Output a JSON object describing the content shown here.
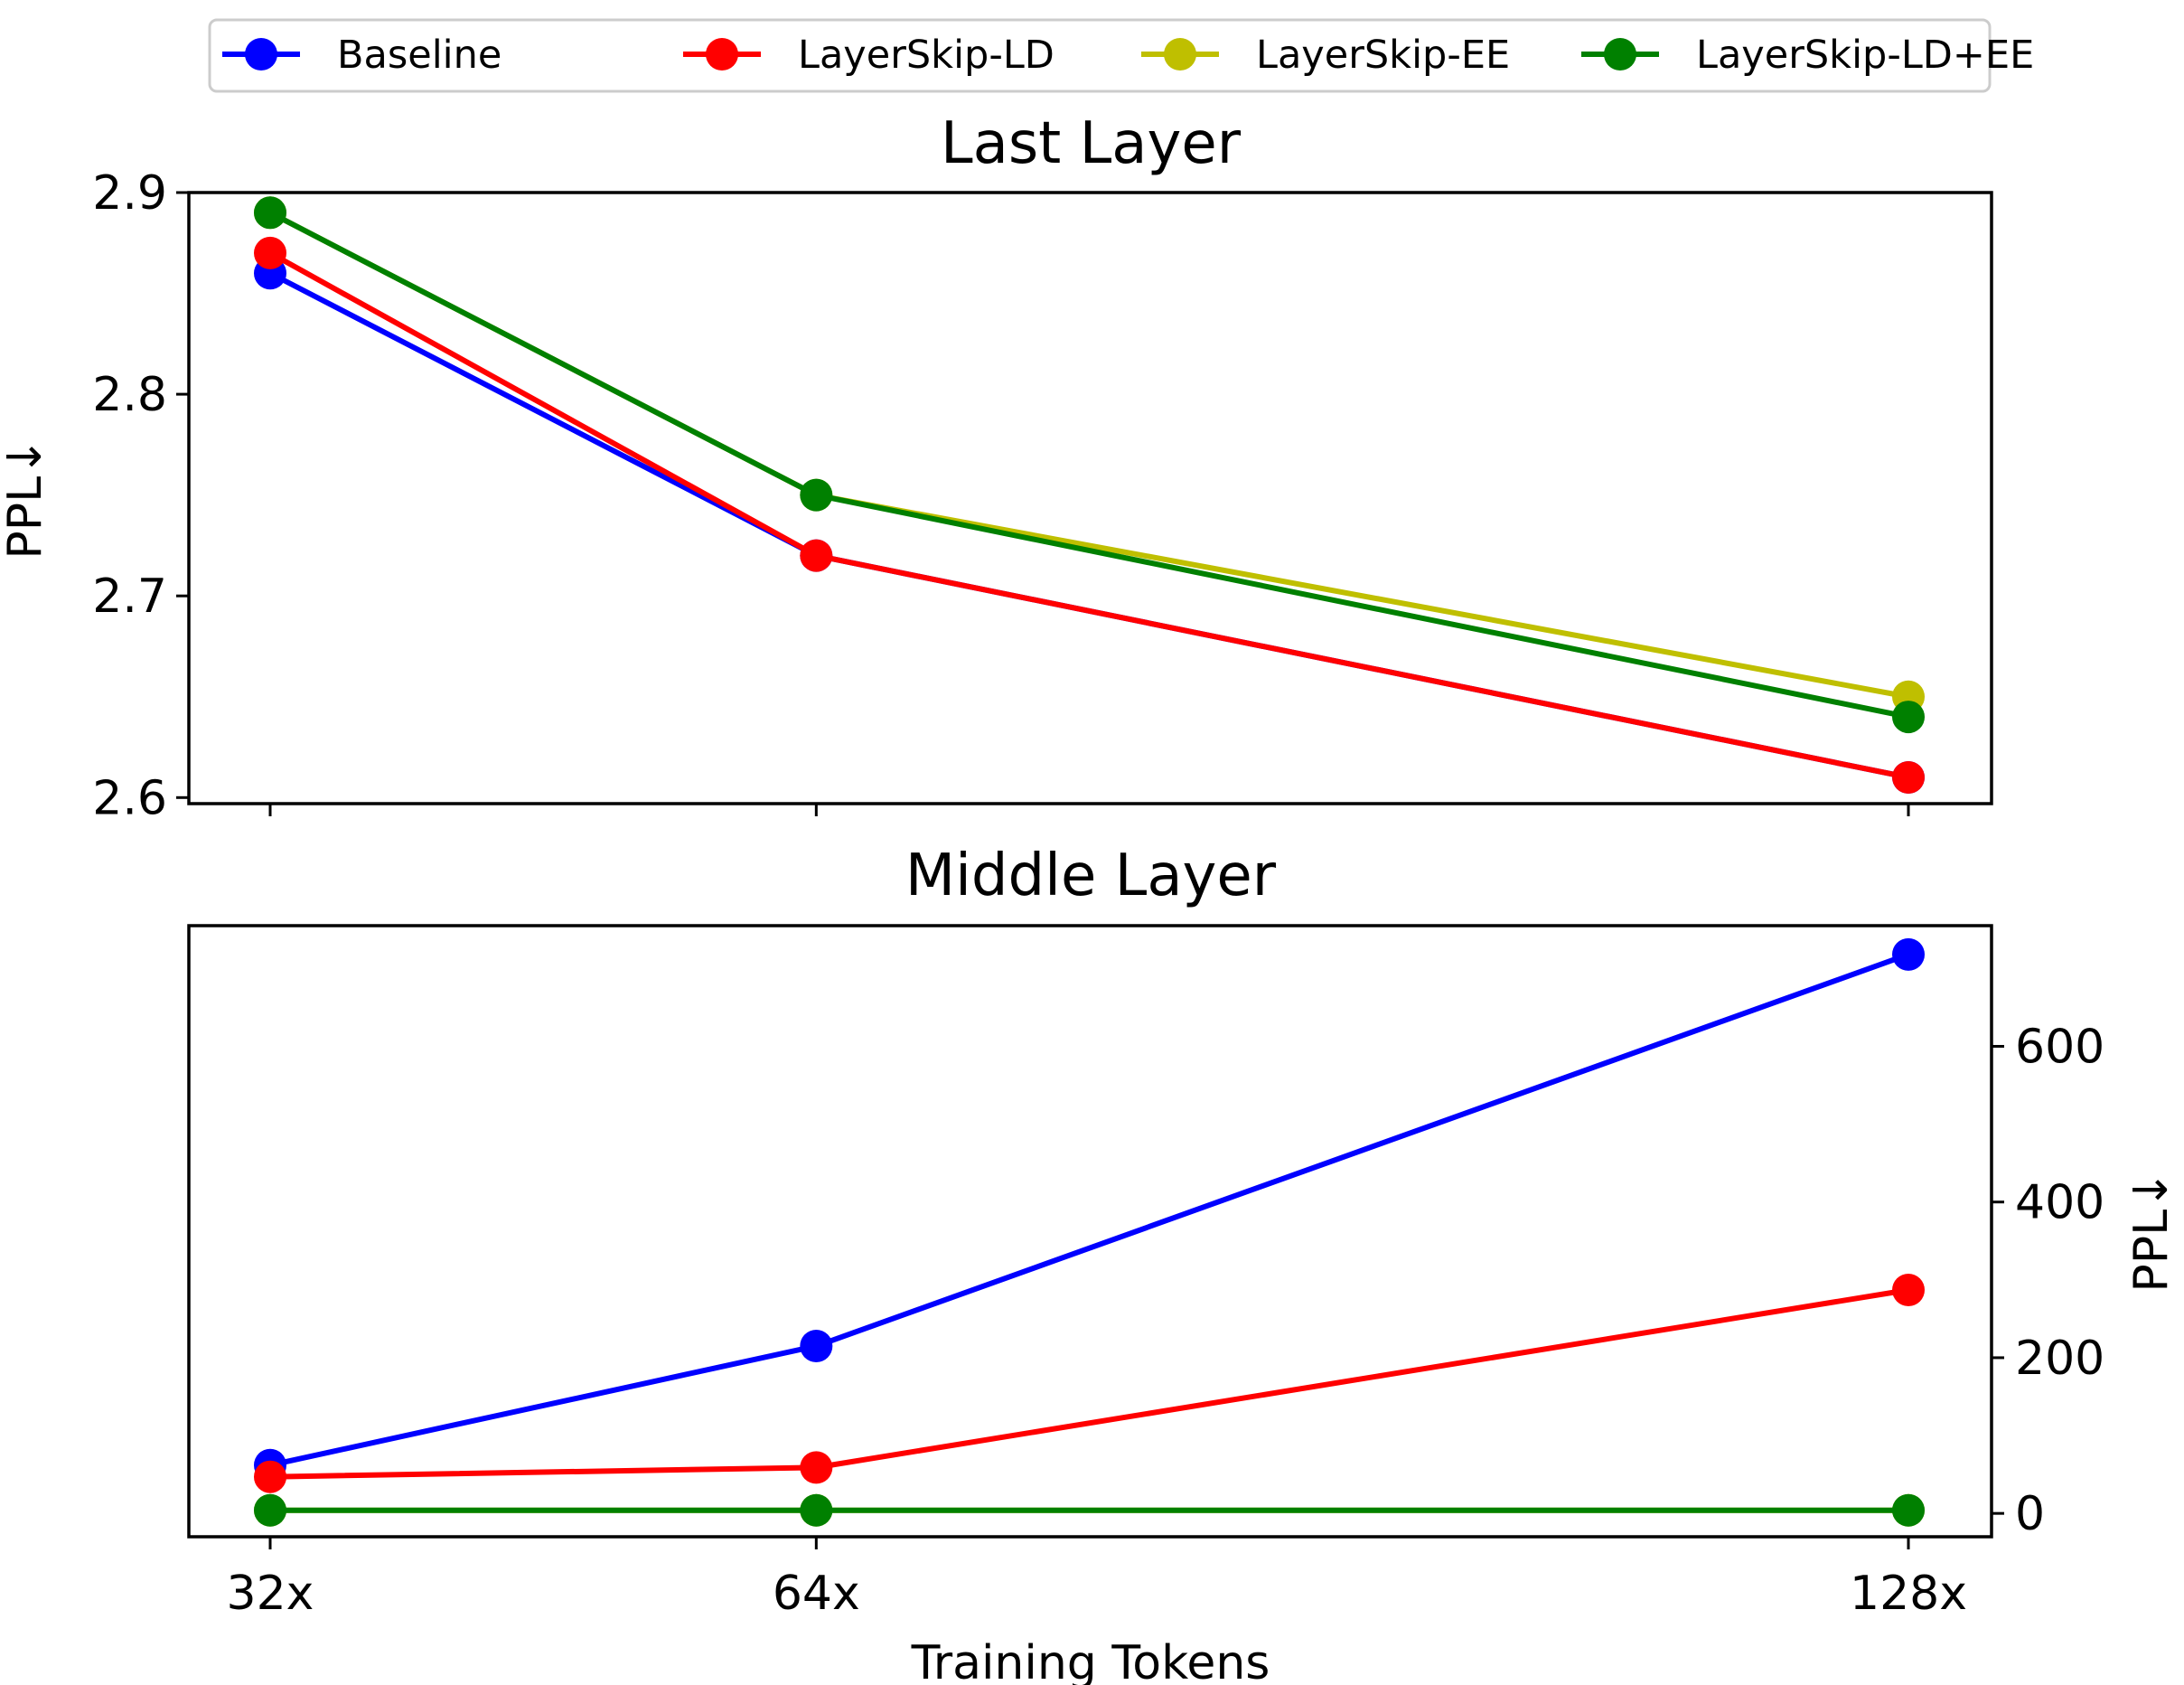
{
  "chart_data": {
    "type": "line",
    "legend_placement": "top-center",
    "legend": [
      {
        "name": "Baseline",
        "color": "#0000ff"
      },
      {
        "name": "LayerSkip-LD",
        "color": "#ff0000"
      },
      {
        "name": "LayerSkip-EE",
        "color": "#bfbf00"
      },
      {
        "name": "LayerSkip-LD+EE",
        "color": "#008000"
      }
    ],
    "categories": [
      "32x",
      "64x",
      "128x"
    ],
    "x_values": [
      32,
      64,
      128
    ],
    "xlabel": "Training Tokens",
    "panels": [
      {
        "title": "Last Layer",
        "ylabel": "PPL↓",
        "y_axis_side": "left",
        "ylim": [
          2.597,
          2.9
        ],
        "yticks": [
          2.6,
          2.7,
          2.8,
          2.9
        ],
        "ytick_labels": [
          "2.6",
          "2.7",
          "2.8",
          "2.9"
        ],
        "grid": false,
        "series": [
          {
            "name": "Baseline",
            "color": "#0000ff",
            "values": [
              2.86,
              2.72,
              2.61
            ]
          },
          {
            "name": "LayerSkip-LD",
            "color": "#ff0000",
            "values": [
              2.87,
              2.72,
              2.61
            ]
          },
          {
            "name": "LayerSkip-EE",
            "color": "#bfbf00",
            "values": [
              2.89,
              2.75,
              2.65
            ]
          },
          {
            "name": "LayerSkip-LD+EE",
            "color": "#008000",
            "values": [
              2.89,
              2.75,
              2.64
            ]
          }
        ]
      },
      {
        "title": "Middle Layer",
        "ylabel": "PPL↓",
        "y_axis_side": "right",
        "ylim": [
          -30,
          755
        ],
        "yticks": [
          0,
          200,
          400,
          600
        ],
        "ytick_labels": [
          "0",
          "200",
          "400",
          "600"
        ],
        "grid": false,
        "series": [
          {
            "name": "Baseline",
            "color": "#0000ff",
            "values": [
              62,
              215,
              718
            ]
          },
          {
            "name": "LayerSkip-LD",
            "color": "#ff0000",
            "values": [
              47,
              59,
              287
            ]
          },
          {
            "name": "LayerSkip-EE",
            "color": "#bfbf00",
            "values": [
              4,
              4,
              4
            ]
          },
          {
            "name": "LayerSkip-LD+EE",
            "color": "#008000",
            "values": [
              4,
              4,
              4
            ]
          }
        ]
      }
    ]
  }
}
